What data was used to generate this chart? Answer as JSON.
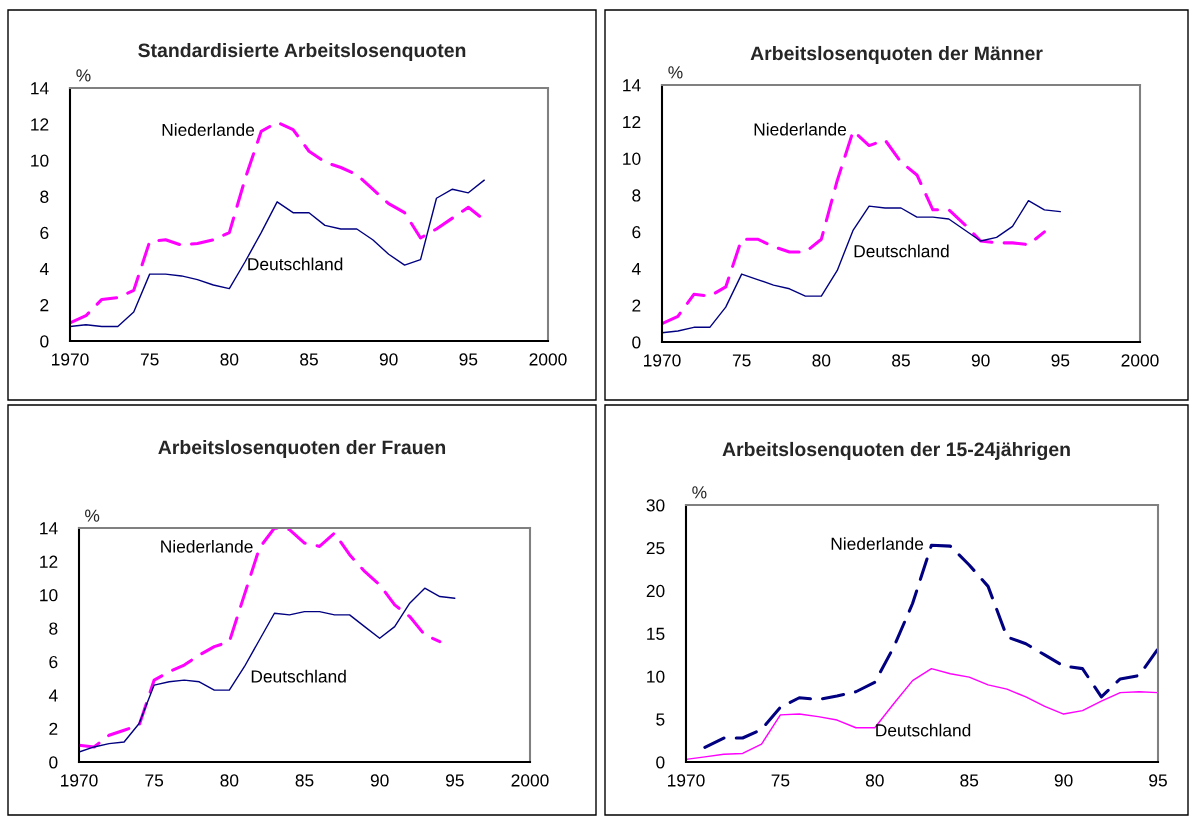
{
  "chart_data": [
    {
      "type": "line",
      "title": "Standardisierte Arbeitslosenquoten",
      "annotations": [
        "%"
      ],
      "x": [
        1970,
        1971,
        1972,
        1973,
        1974,
        1975,
        1976,
        1977,
        1978,
        1979,
        1980,
        1981,
        1982,
        1983,
        1984,
        1985,
        1986,
        1987,
        1988,
        1989,
        1990,
        1991,
        1992,
        1993,
        1994,
        1995,
        1996
      ],
      "series": [
        {
          "name": "Niederlande",
          "color": "#ff00ff",
          "line_style": "dashed",
          "values": [
            1.0,
            1.4,
            2.3,
            2.4,
            2.8,
            5.5,
            5.6,
            5.3,
            5.4,
            5.6,
            6.0,
            9.0,
            11.6,
            12.1,
            11.7,
            10.5,
            9.9,
            9.6,
            9.2,
            8.4,
            7.6,
            7.1,
            5.7,
            6.2,
            6.8,
            7.4,
            6.7
          ]
        },
        {
          "name": "Deutschland",
          "color": "#000080",
          "line_style": "solid",
          "values": [
            0.8,
            0.9,
            0.8,
            0.8,
            1.6,
            3.7,
            3.7,
            3.6,
            3.4,
            3.1,
            2.9,
            4.4,
            6.0,
            7.7,
            7.1,
            7.1,
            6.4,
            6.2,
            6.2,
            5.6,
            4.8,
            4.2,
            4.5,
            7.9,
            8.4,
            8.2,
            8.9
          ]
        }
      ],
      "xlim": [
        1970,
        2000
      ],
      "xticks": [
        1970,
        {
          "value": 1975,
          "label": "75"
        },
        {
          "value": 1980,
          "label": "80"
        },
        {
          "value": 1985,
          "label": "85"
        },
        {
          "value": 1990,
          "label": "90"
        },
        {
          "value": 1995,
          "label": "95"
        },
        2000
      ],
      "ylim": [
        0,
        14
      ],
      "yticks": [
        0,
        2,
        4,
        6,
        8,
        10,
        12,
        14
      ],
      "legend": false,
      "grid": false
    },
    {
      "type": "line",
      "title": "Arbeitslosenquoten der Männer",
      "annotations": [
        "%"
      ],
      "x": [
        1970,
        1971,
        1972,
        1973,
        1974,
        1975,
        1976,
        1977,
        1978,
        1979,
        1980,
        1981,
        1982,
        1983,
        1984,
        1985,
        1986,
        1987,
        1988,
        1989,
        1990,
        1991,
        1992,
        1993,
        1994,
        1995
      ],
      "series": [
        {
          "name": "Niederlande",
          "color": "#ff00ff",
          "line_style": "dashed",
          "values": [
            1.0,
            1.4,
            2.6,
            2.5,
            3.0,
            5.6,
            5.6,
            5.2,
            4.9,
            4.9,
            5.6,
            8.8,
            11.5,
            10.7,
            11.0,
            9.8,
            9.1,
            7.2,
            7.2,
            6.4,
            5.5,
            5.4,
            5.4,
            5.3,
            6.0,
            null
          ]
        },
        {
          "name": "Deutschland",
          "color": "#000080",
          "line_style": "solid",
          "values": [
            0.5,
            0.6,
            0.8,
            0.8,
            1.9,
            3.7,
            3.4,
            3.1,
            2.9,
            2.5,
            2.5,
            3.9,
            6.1,
            7.4,
            7.3,
            7.3,
            6.8,
            6.8,
            6.7,
            6.1,
            5.5,
            5.7,
            6.3,
            7.7,
            7.2,
            7.1
          ]
        }
      ],
      "xlim": [
        1970,
        2000
      ],
      "xticks": [
        1970,
        {
          "value": 1975,
          "label": "75"
        },
        {
          "value": 1980,
          "label": "80"
        },
        {
          "value": 1985,
          "label": "85"
        },
        {
          "value": 1990,
          "label": "90"
        },
        {
          "value": 1995,
          "label": "95"
        },
        2000
      ],
      "ylim": [
        0,
        14
      ],
      "yticks": [
        0,
        2,
        4,
        6,
        8,
        10,
        12,
        14
      ],
      "legend": false,
      "grid": false
    },
    {
      "type": "line",
      "title": "Arbeitslosenquoten der Frauen",
      "annotations": [
        "%"
      ],
      "x": [
        1970,
        1971,
        1972,
        1973,
        1974,
        1975,
        1976,
        1977,
        1978,
        1979,
        1980,
        1981,
        1982,
        1983,
        1984,
        1985,
        1986,
        1987,
        1988,
        1989,
        1990,
        1991,
        1992,
        1993,
        1994,
        1995
      ],
      "series": [
        {
          "name": "Niederlande",
          "color": "#ff00ff",
          "line_style": "dashed",
          "values": [
            1.0,
            0.9,
            1.6,
            1.9,
            2.2,
            4.9,
            5.4,
            5.8,
            6.4,
            6.9,
            7.2,
            10.0,
            12.8,
            14.0,
            13.9,
            13.1,
            12.9,
            13.7,
            12.4,
            11.4,
            10.6,
            9.4,
            8.7,
            7.6,
            7.2,
            null
          ]
        },
        {
          "name": "Deutschland",
          "color": "#000080",
          "line_style": "solid",
          "values": [
            0.6,
            0.9,
            1.1,
            1.2,
            2.3,
            4.6,
            4.8,
            4.9,
            4.8,
            4.3,
            4.3,
            5.7,
            7.3,
            8.9,
            8.8,
            9.0,
            9.0,
            8.8,
            8.8,
            8.1,
            7.4,
            8.1,
            9.5,
            10.4,
            9.9,
            9.8
          ]
        }
      ],
      "xlim": [
        1970,
        2000
      ],
      "xticks": [
        1970,
        {
          "value": 1975,
          "label": "75"
        },
        {
          "value": 1980,
          "label": "80"
        },
        {
          "value": 1985,
          "label": "85"
        },
        {
          "value": 1990,
          "label": "90"
        },
        {
          "value": 1995,
          "label": "95"
        },
        2000
      ],
      "ylim": [
        0,
        14
      ],
      "yticks": [
        0,
        2,
        4,
        6,
        8,
        10,
        12,
        14
      ],
      "legend": false,
      "grid": false
    },
    {
      "type": "line",
      "title": "Arbeitslosenquoten der 15-24jährigen",
      "annotations": [
        "%"
      ],
      "x": [
        1970,
        1971,
        1972,
        1973,
        1974,
        1975,
        1976,
        1977,
        1978,
        1979,
        1980,
        1981,
        1982,
        1983,
        1984,
        1985,
        1986,
        1987,
        1988,
        1989,
        1990,
        1991,
        1992,
        1993,
        1994,
        1995
      ],
      "series": [
        {
          "name": "Niederlande",
          "color": "#000080",
          "line_style": "dashed",
          "values": [
            null,
            1.7,
            2.8,
            2.8,
            3.8,
            6.4,
            7.5,
            7.3,
            7.7,
            8.2,
            9.3,
            13.4,
            18.5,
            25.3,
            25.2,
            23.0,
            20.5,
            14.6,
            13.8,
            12.5,
            11.2,
            10.9,
            7.6,
            9.7,
            10.1,
            13.2
          ]
        },
        {
          "name": "Deutschland",
          "color": "#ff00ff",
          "line_style": "solid",
          "values": [
            0.3,
            0.6,
            0.9,
            1.0,
            2.1,
            5.5,
            5.6,
            5.3,
            4.9,
            4.0,
            4.0,
            6.8,
            9.5,
            10.9,
            10.3,
            9.9,
            9.0,
            8.5,
            7.6,
            6.5,
            5.6,
            6.0,
            7.1,
            8.1,
            8.2,
            8.1
          ]
        }
      ],
      "xlim": [
        1970,
        1995
      ],
      "xticks": [
        1970,
        {
          "value": 1975,
          "label": "75"
        },
        {
          "value": 1980,
          "label": "80"
        },
        {
          "value": 1985,
          "label": "85"
        },
        {
          "value": 1990,
          "label": "90"
        },
        {
          "value": 1995,
          "label": "95"
        }
      ],
      "ylim": [
        0,
        30
      ],
      "yticks": [
        0,
        5,
        10,
        15,
        20,
        25,
        30
      ],
      "legend": false,
      "grid": false
    }
  ]
}
